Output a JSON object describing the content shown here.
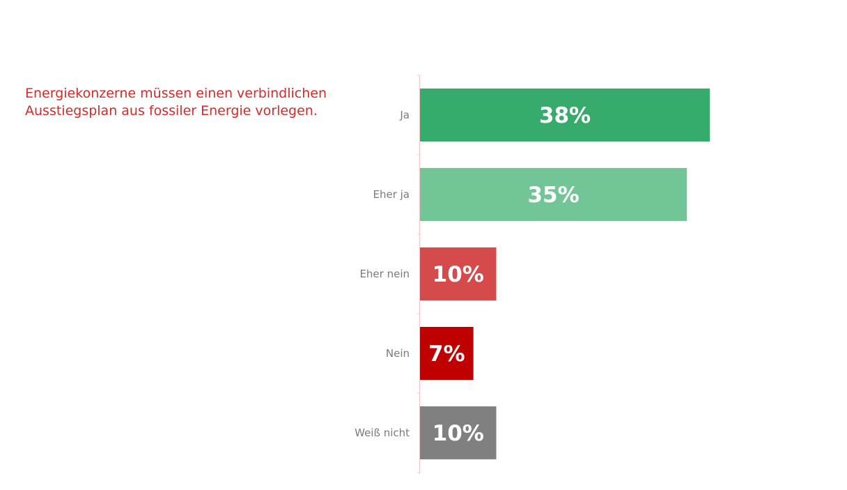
{
  "question": {
    "line1": "Energiekonzerne müssen einen verbindlichen",
    "line2": "Ausstiegsplan aus fossiler Energie vorlegen."
  },
  "chart_data": {
    "type": "bar",
    "orientation": "horizontal",
    "categories": [
      "Ja",
      "Eher ja",
      "Eher nein",
      "Nein",
      "Weiß nicht"
    ],
    "values": [
      38,
      35,
      10,
      7,
      10
    ],
    "value_labels": [
      "38%",
      "35%",
      "10%",
      "7%",
      "10%"
    ],
    "colors": [
      "#36ab6c",
      "#71c597",
      "#d54a4a",
      "#c00000",
      "#808080"
    ],
    "axis_color": "#f2c4c4",
    "label_color": "#7a7a7a",
    "grid": false,
    "legend": "none"
  }
}
